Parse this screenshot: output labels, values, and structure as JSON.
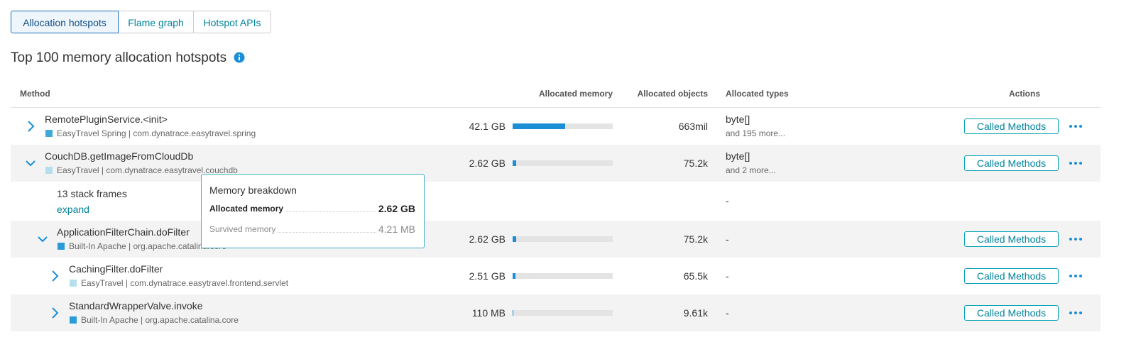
{
  "tabs": [
    {
      "label": "Allocation hotspots",
      "selected": true
    },
    {
      "label": "Flame graph"
    },
    {
      "label": "Hotspot APIs"
    }
  ],
  "title": "Top 100 memory allocation hotspots",
  "table": {
    "columns": [
      "Method",
      "Allocated memory",
      "Allocated objects",
      "Allocated types",
      "Actions"
    ],
    "memory_bar_range": [
      0,
      80
    ],
    "rows": [
      {
        "expanded": false,
        "indent": 0,
        "method": "RemotePluginService.<init>",
        "source": "EasyTravel Spring | com.dynatrace.easytravel.spring",
        "source_color": "#3fa9d8",
        "memory": {
          "value": 42.1,
          "label": "42.1 GB"
        },
        "objects": "663mil",
        "types": "byte[]",
        "types_more": "and 195 more...",
        "action": "Called Methods"
      },
      {
        "expanded": true,
        "indent": 0,
        "method": "CouchDB.getImageFromCloudDb",
        "source": "EasyTravel | com.dynatrace.easytravel.couchdb",
        "source_color": "#b4dfec",
        "memory": {
          "value": 2.62,
          "label": "2.62 GB"
        },
        "objects": "75.2k",
        "types": "byte[]",
        "types_more": "and 2 more...",
        "action": "Called Methods"
      },
      {
        "indent": 1,
        "stack_frames": "13 stack frames",
        "expand": "expand",
        "types": "-"
      },
      {
        "expanded": true,
        "indent": 1,
        "method": "ApplicationFilterChain.doFilter",
        "source": "Built-In Apache | org.apache.catalina.core",
        "source_color": "#2a9ad8",
        "memory": {
          "value": 2.62,
          "label": "2.62 GB"
        },
        "objects": "75.2k",
        "types": "-",
        "action": "Called Methods"
      },
      {
        "expanded": false,
        "indent": 2,
        "method": "CachingFilter.doFilter",
        "source": "EasyTravel | com.dynatrace.easytravel.frontend.servlet",
        "source_color": "#b4dfec",
        "memory": {
          "value": 2.51,
          "label": "2.51 GB"
        },
        "objects": "65.5k",
        "types": "-",
        "action": "Called Methods"
      },
      {
        "expanded": false,
        "indent": 2,
        "method": "StandardWrapperValve.invoke",
        "source": "Built-In Apache | org.apache.catalina.core",
        "source_color": "#2a9ad8",
        "memory": {
          "value": 0.11,
          "label": "110 MB"
        },
        "objects": "9.61k",
        "types": "-",
        "action": "Called Methods"
      }
    ]
  },
  "tooltip": {
    "title": "Memory breakdown",
    "rows": [
      {
        "label": "Allocated memory",
        "value": "2.62 GB"
      },
      {
        "label": "Survived memory",
        "value": "4.21 MB"
      }
    ]
  }
}
